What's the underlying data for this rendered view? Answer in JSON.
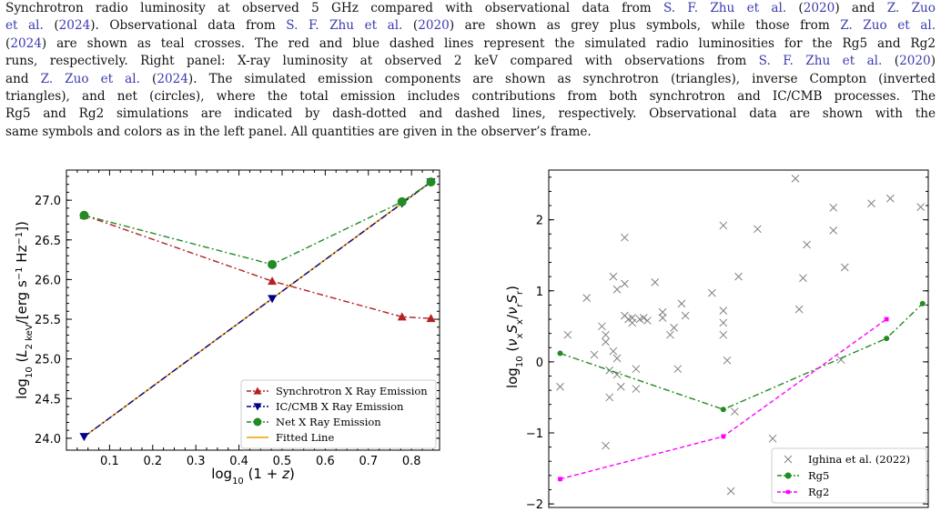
{
  "caption": {
    "lines": [
      [
        {
          "t": "Synchrotron radio luminosity at observed 5 GHz compared with observational data from "
        },
        {
          "t": "S. F. Zhu et al.",
          "r": 1
        },
        {
          "t": " ("
        },
        {
          "t": "2020",
          "r": 1
        },
        {
          "t": ") and "
        },
        {
          "t": "Z. Zuo",
          "r": 1
        }
      ],
      [
        {
          "t": "et al.",
          "r": 1
        },
        {
          "t": " ("
        },
        {
          "t": "2024",
          "r": 1
        },
        {
          "t": "). Observational data from "
        },
        {
          "t": "S. F. Zhu et al.",
          "r": 1
        },
        {
          "t": " ("
        },
        {
          "t": "2020",
          "r": 1
        },
        {
          "t": ") are shown as grey plus symbols, while those from "
        },
        {
          "t": "Z. Zuo et al.",
          "r": 1
        }
      ],
      [
        {
          "t": "("
        },
        {
          "t": "2024",
          "r": 1
        },
        {
          "t": ") are shown as teal crosses. The red and blue dashed lines represent the simulated radio luminosities for the Rg5 and Rg2"
        }
      ],
      [
        {
          "t": "runs, respectively. Right panel: X-ray luminosity at observed 2 keV compared with observations from "
        },
        {
          "t": "S. F. Zhu et al.",
          "r": 1
        },
        {
          "t": " ("
        },
        {
          "t": "2020",
          "r": 1
        },
        {
          "t": ")"
        }
      ],
      [
        {
          "t": "and "
        },
        {
          "t": "Z. Zuo et al.",
          "r": 1
        },
        {
          "t": " ("
        },
        {
          "t": "2024",
          "r": 1
        },
        {
          "t": "). The simulated emission components are shown as synchrotron (triangles), inverse Compton (inverted"
        }
      ],
      [
        {
          "t": "triangles), and net (circles), where the total emission includes contributions from both synchrotron and IC/CMB processes. The"
        }
      ],
      [
        {
          "t": "Rg5 and Rg2 simulations are indicated by dash-dotted and dashed lines, respectively. Observational data are shown with the"
        }
      ],
      [
        {
          "t": "same symbols and colors as in the left panel. All quantities are given in the observer’s frame."
        }
      ]
    ]
  },
  "chart_data": [
    {
      "type": "line",
      "xlabel": "log10 (1 + z)",
      "ylabel": "log10 (L2 keV/[erg s−1 Hz−1])",
      "xlim": [
        0.0,
        0.865
      ],
      "ylim": [
        23.85,
        27.38
      ],
      "xticks": [
        "0.1",
        "0.2",
        "0.3",
        "0.4",
        "0.5",
        "0.6",
        "0.7",
        "0.8"
      ],
      "yticks": [
        "24.0",
        "24.5",
        "25.0",
        "25.5",
        "26.0",
        "26.5",
        "27.0"
      ],
      "legend_position": "lower-right",
      "colors": {
        "sync": "#b22222",
        "ic": "#00008b",
        "net": "#228b22",
        "fit": "#f0a000"
      },
      "series": [
        {
          "name": "Synchrotron X Ray Emission",
          "marker": "triangle",
          "line": "dash-dot",
          "x": [
            0.041,
            0.477,
            0.778,
            0.845
          ],
          "y": [
            26.81,
            25.98,
            25.53,
            25.51
          ]
        },
        {
          "name": "IC/CMB X Ray Emission",
          "marker": "inverted-triangle",
          "line": "dash-dot",
          "x": [
            0.041,
            0.477,
            0.778,
            0.845
          ],
          "y": [
            24.02,
            25.76,
            26.96,
            27.23
          ]
        },
        {
          "name": "Net X Ray Emission",
          "marker": "circle",
          "line": "dash-dot",
          "x": [
            0.041,
            0.477,
            0.778,
            0.845
          ],
          "y": [
            26.81,
            26.19,
            26.98,
            27.23
          ]
        },
        {
          "name": "Fitted Line",
          "marker": "none",
          "line": "solid",
          "x": [
            0.041,
            0.845
          ],
          "y": [
            24.02,
            27.23
          ]
        }
      ]
    },
    {
      "type": "scatter",
      "ylabel": "log10 (νxSx/νrSr)",
      "ylim": [
        -2.05,
        2.7
      ],
      "xlim": [
        0,
        1
      ],
      "yticks": [
        "−2",
        "−1",
        "0",
        "1",
        "2"
      ],
      "legend_position": "lower-right",
      "colors": {
        "obs": "#808080",
        "rg5": "#228b22",
        "rg2": "#ff00ff"
      },
      "series": [
        {
          "name": "Ighina et al. (2022)",
          "marker": "x",
          "points": [
            [
              0.05,
              0.38
            ],
            [
              0.03,
              -0.35
            ],
            [
              0.1,
              0.9
            ],
            [
              0.12,
              0.1
            ],
            [
              0.14,
              0.5
            ],
            [
              0.15,
              0.38
            ],
            [
              0.15,
              0.28
            ],
            [
              0.16,
              -0.12
            ],
            [
              0.16,
              -0.5
            ],
            [
              0.17,
              1.2
            ],
            [
              0.17,
              0.15
            ],
            [
              0.18,
              0.05
            ],
            [
              0.18,
              1.02
            ],
            [
              0.18,
              -0.18
            ],
            [
              0.19,
              -0.35
            ],
            [
              0.2,
              1.1
            ],
            [
              0.2,
              0.65
            ],
            [
              0.21,
              0.6
            ],
            [
              0.22,
              0.55
            ],
            [
              0.22,
              0.62
            ],
            [
              0.23,
              -0.1
            ],
            [
              0.23,
              -0.38
            ],
            [
              0.24,
              0.6
            ],
            [
              0.25,
              0.62
            ],
            [
              0.26,
              0.58
            ],
            [
              0.28,
              1.12
            ],
            [
              0.3,
              0.62
            ],
            [
              0.3,
              0.7
            ],
            [
              0.32,
              0.38
            ],
            [
              0.33,
              0.48
            ],
            [
              0.34,
              -0.1
            ],
            [
              0.35,
              0.82
            ],
            [
              0.36,
              0.65
            ],
            [
              0.2,
              1.75
            ],
            [
              0.15,
              -1.18
            ],
            [
              0.43,
              0.97
            ],
            [
              0.46,
              1.92
            ],
            [
              0.46,
              0.72
            ],
            [
              0.46,
              0.55
            ],
            [
              0.46,
              0.38
            ],
            [
              0.47,
              0.02
            ],
            [
              0.49,
              -0.7
            ],
            [
              0.5,
              1.2
            ],
            [
              0.48,
              -1.82
            ],
            [
              0.55,
              1.87
            ],
            [
              0.59,
              -1.08
            ],
            [
              0.65,
              2.58
            ],
            [
              0.67,
              1.18
            ],
            [
              0.68,
              1.65
            ],
            [
              0.66,
              0.74
            ],
            [
              0.75,
              1.85
            ],
            [
              0.75,
              2.17
            ],
            [
              0.78,
              1.33
            ],
            [
              0.77,
              0.03
            ],
            [
              0.85,
              2.23
            ],
            [
              0.9,
              2.3
            ],
            [
              0.98,
              2.18
            ]
          ]
        },
        {
          "name": "Rg5",
          "marker": "circle",
          "line": "dash-dot",
          "points": [
            [
              0.03,
              0.12
            ],
            [
              0.46,
              -0.67
            ],
            [
              0.89,
              0.33
            ],
            [
              0.985,
              0.82
            ]
          ]
        },
        {
          "name": "Rg2",
          "marker": "square",
          "line": "dashed",
          "points": [
            [
              0.03,
              -1.65
            ],
            [
              0.46,
              -1.05
            ],
            [
              0.89,
              0.6
            ]
          ]
        }
      ]
    }
  ]
}
